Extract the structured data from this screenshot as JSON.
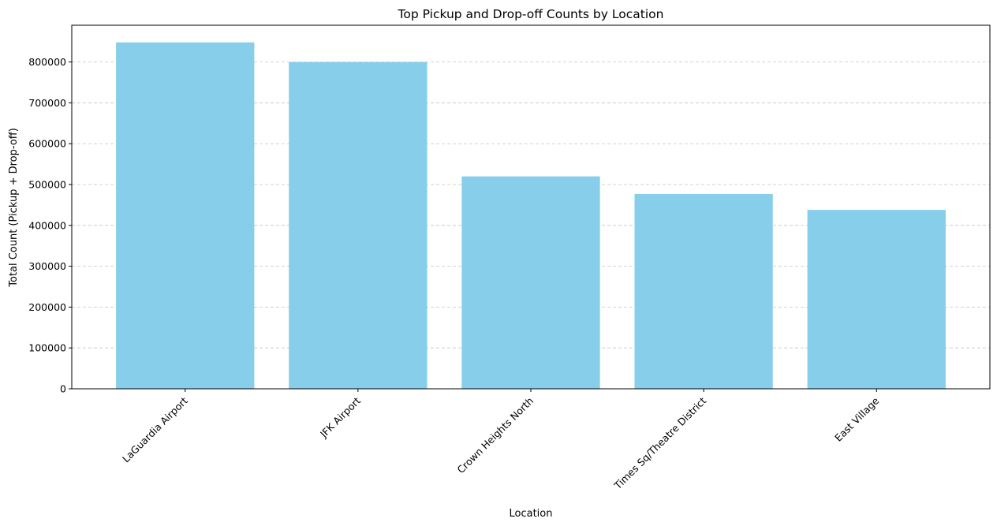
{
  "chart_data": {
    "type": "bar",
    "title": "Top Pickup and Drop-off Counts by Location",
    "xlabel": "Location",
    "ylabel": "Total Count (Pickup + Drop-off)",
    "categories": [
      "LaGuardia Airport",
      "JFK Airport",
      "Crown Heights North",
      "Times Sq/Theatre District",
      "East Village"
    ],
    "values": [
      848000,
      800000,
      520000,
      477000,
      438000
    ],
    "ylim": [
      0,
      890000
    ],
    "yticks": [
      0,
      100000,
      200000,
      300000,
      400000,
      500000,
      600000,
      700000,
      800000
    ],
    "ytick_labels": [
      "0",
      "100000",
      "200000",
      "300000",
      "400000",
      "500000",
      "600000",
      "700000",
      "800000"
    ],
    "bar_color": "#87ceeb",
    "grid": "y-axis dashed",
    "x_tick_rotation": "45 degrees"
  }
}
